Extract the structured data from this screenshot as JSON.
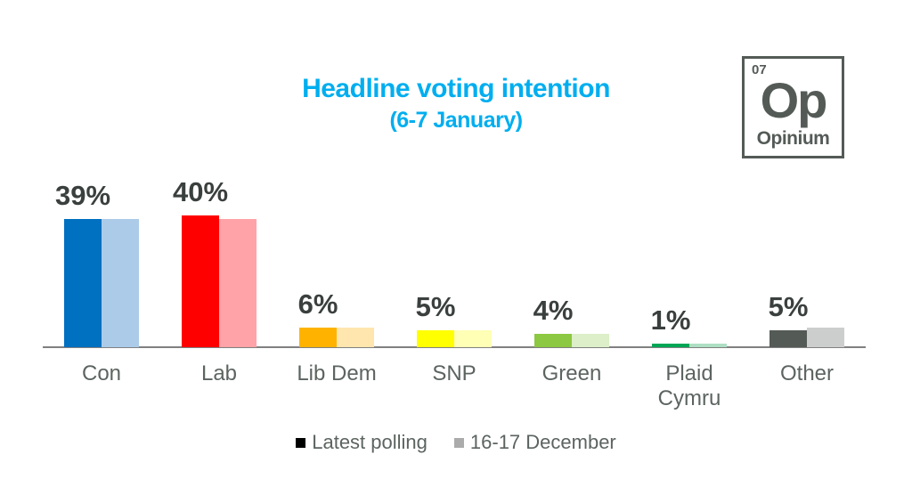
{
  "title": "Headline voting intention",
  "subtitle": "(6-7 January)",
  "title_color": "#00AEEF",
  "logo": {
    "number": "07",
    "symbol": "Op",
    "name": "Opinium",
    "color": "#545B57"
  },
  "legend": {
    "items": [
      {
        "label": "Latest polling",
        "swatch": "#000000"
      },
      {
        "label": "16-17 December",
        "swatch": "#ABABAB"
      }
    ]
  },
  "chart_data": {
    "type": "bar",
    "title": "Headline voting intention (6-7 January)",
    "categories": [
      "Con",
      "Lab",
      "Lib Dem",
      "SNP",
      "Green",
      "Plaid Cymru",
      "Other"
    ],
    "series": [
      {
        "name": "Latest polling",
        "values": [
          39,
          40,
          6,
          5,
          4,
          1,
          5
        ]
      },
      {
        "name": "16-17 December",
        "values": [
          39,
          39,
          6,
          5,
          4,
          1,
          6
        ]
      }
    ],
    "value_labels": [
      "39%",
      "40%",
      "6%",
      "5%",
      "4%",
      "1%",
      "5%"
    ],
    "bar_colors_latest": [
      "#0070C0",
      "#FF0000",
      "#FFB300",
      "#FFFF00",
      "#8CC841",
      "#00A656",
      "#545B57"
    ],
    "bar_colors_december": [
      "#ABCBE9",
      "#FFA3A8",
      "#FFE5AE",
      "#FFFFB5",
      "#DCEFC8",
      "#AEDFC4",
      "#CCCECD"
    ],
    "xlabel": "",
    "ylabel": "",
    "ylim": [
      0,
      45
    ],
    "grid": false,
    "legend_position": "bottom",
    "value_label_color": "#3A403D",
    "axis_label_color": "#5C6460",
    "axis_line_color": "#808080"
  }
}
